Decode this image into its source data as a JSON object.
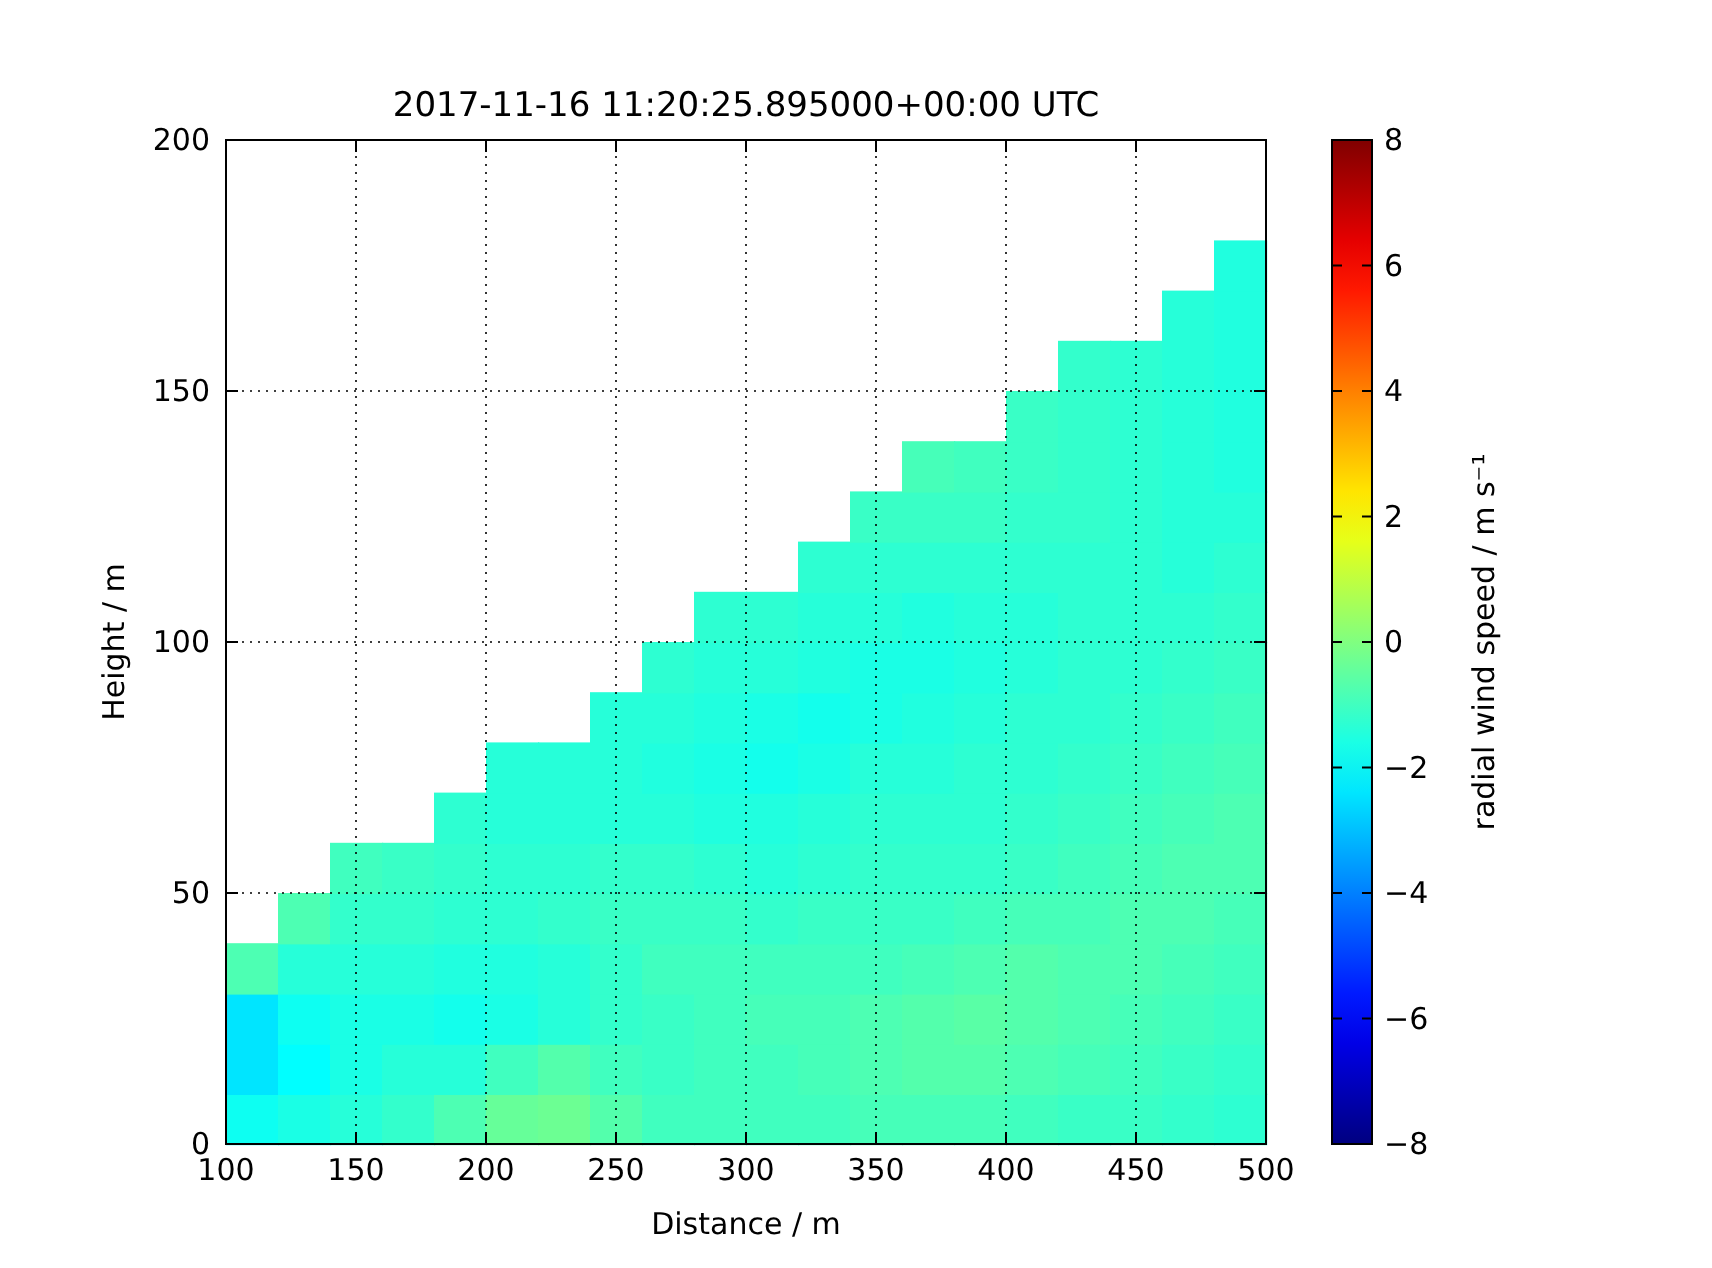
{
  "chart_data": {
    "type": "scatter",
    "title": "2017-11-16 11:20:25.895000+00:00 UTC",
    "xlabel": "Distance / m",
    "ylabel": "Height / m",
    "clabel": "radial wind speed / m s⁻¹",
    "xlim": [
      100,
      500
    ],
    "xticks": [
      100,
      150,
      200,
      250,
      300,
      350,
      400,
      450,
      500
    ],
    "ylim": [
      0,
      200
    ],
    "yticks": [
      0,
      50,
      100,
      150,
      200
    ],
    "clim": [
      -8,
      8
    ],
    "cticks": [
      -8,
      -6,
      -4,
      -2,
      0,
      2,
      4,
      6,
      8
    ],
    "grid": true,
    "marker": "square",
    "x": [
      110,
      110,
      110,
      110,
      130,
      130,
      130,
      130,
      130,
      150,
      150,
      150,
      150,
      150,
      150,
      170,
      170,
      170,
      170,
      170,
      170,
      190,
      190,
      190,
      190,
      190,
      190,
      190,
      210,
      210,
      210,
      210,
      210,
      210,
      210,
      210,
      230,
      230,
      230,
      230,
      230,
      230,
      230,
      230,
      250,
      250,
      250,
      250,
      250,
      250,
      250,
      250,
      250,
      270,
      270,
      270,
      270,
      270,
      270,
      270,
      270,
      270,
      270,
      290,
      290,
      290,
      290,
      290,
      290,
      290,
      290,
      290,
      290,
      290,
      310,
      310,
      310,
      310,
      310,
      310,
      310,
      310,
      310,
      310,
      310,
      330,
      330,
      330,
      330,
      330,
      330,
      330,
      330,
      330,
      330,
      330,
      330,
      350,
      350,
      350,
      350,
      350,
      350,
      350,
      350,
      350,
      350,
      350,
      350,
      350,
      370,
      370,
      370,
      370,
      370,
      370,
      370,
      370,
      370,
      370,
      370,
      370,
      370,
      370,
      390,
      390,
      390,
      390,
      390,
      390,
      390,
      390,
      390,
      390,
      390,
      390,
      390,
      390,
      410,
      410,
      410,
      410,
      410,
      410,
      410,
      410,
      410,
      410,
      410,
      410,
      410,
      410,
      410,
      430,
      430,
      430,
      430,
      430,
      430,
      430,
      430,
      430,
      430,
      430,
      430,
      430,
      430,
      430,
      430,
      450,
      450,
      450,
      450,
      450,
      450,
      450,
      450,
      450,
      450,
      450,
      450,
      450,
      450,
      450,
      450,
      470,
      470,
      470,
      470,
      470,
      470,
      470,
      470,
      470,
      470,
      470,
      470,
      470,
      470,
      470,
      470,
      470,
      490,
      490,
      490,
      490,
      490,
      490,
      490,
      490,
      490,
      490,
      490,
      490,
      490,
      490,
      490,
      490,
      490,
      490
    ],
    "values": [
      5,
      15,
      25,
      35,
      5,
      15,
      25,
      35,
      45,
      5,
      15,
      25,
      35,
      45,
      55,
      5,
      15,
      25,
      35,
      45,
      55,
      5,
      15,
      25,
      35,
      45,
      55,
      65,
      5,
      15,
      25,
      35,
      45,
      55,
      65,
      75,
      5,
      15,
      25,
      35,
      45,
      55,
      65,
      75,
      5,
      15,
      25,
      35,
      45,
      55,
      65,
      75,
      85,
      5,
      15,
      25,
      35,
      45,
      55,
      65,
      75,
      85,
      95,
      5,
      15,
      25,
      35,
      45,
      55,
      65,
      75,
      85,
      95,
      105,
      5,
      15,
      25,
      35,
      45,
      55,
      65,
      75,
      85,
      95,
      105,
      5,
      15,
      25,
      35,
      45,
      55,
      65,
      75,
      85,
      95,
      105,
      115,
      5,
      15,
      25,
      35,
      45,
      55,
      65,
      75,
      85,
      95,
      105,
      115,
      125,
      5,
      15,
      25,
      35,
      45,
      55,
      65,
      75,
      85,
      95,
      105,
      115,
      125,
      135,
      5,
      15,
      25,
      35,
      45,
      55,
      65,
      75,
      85,
      95,
      105,
      115,
      125,
      135,
      5,
      15,
      25,
      35,
      45,
      55,
      65,
      75,
      85,
      95,
      105,
      115,
      125,
      135,
      145,
      5,
      15,
      25,
      35,
      45,
      55,
      65,
      75,
      85,
      95,
      105,
      115,
      125,
      135,
      145,
      155,
      5,
      15,
      25,
      35,
      45,
      55,
      65,
      75,
      85,
      95,
      105,
      115,
      125,
      135,
      145,
      155,
      5,
      15,
      25,
      35,
      45,
      55,
      65,
      75,
      85,
      95,
      105,
      115,
      125,
      135,
      145,
      155,
      165,
      5,
      15,
      25,
      35,
      45,
      55,
      65,
      75,
      85,
      95,
      105,
      115,
      125,
      135,
      145,
      155,
      165,
      175
    ],
    "cvalues": [
      -1.8,
      -2.4,
      -2.4,
      -0.8,
      -1.6,
      -2.0,
      -1.8,
      -1.4,
      -0.8,
      -1.4,
      -1.6,
      -1.6,
      -1.4,
      -1.2,
      -1.0,
      -1.2,
      -1.4,
      -1.6,
      -1.4,
      -1.2,
      -1.1,
      -0.8,
      -1.4,
      -1.7,
      -1.5,
      -1.3,
      -1.2,
      -1.3,
      -0.4,
      -1.0,
      -1.6,
      -1.5,
      -1.3,
      -1.3,
      -1.4,
      -1.4,
      -0.3,
      -0.7,
      -1.4,
      -1.4,
      -1.2,
      -1.3,
      -1.4,
      -1.4,
      -0.7,
      -1.0,
      -1.2,
      -1.2,
      -1.1,
      -1.2,
      -1.4,
      -1.4,
      -1.4,
      -1.0,
      -1.1,
      -1.1,
      -1.0,
      -1.1,
      -1.2,
      -1.4,
      -1.5,
      -1.4,
      -1.3,
      -1.0,
      -1.0,
      -1.0,
      -1.0,
      -1.1,
      -1.3,
      -1.5,
      -1.6,
      -1.5,
      -1.4,
      -1.3,
      -1.0,
      -1.0,
      -0.9,
      -1.0,
      -1.2,
      -1.4,
      -1.5,
      -1.7,
      -1.6,
      -1.4,
      -1.3,
      -1.0,
      -0.9,
      -0.9,
      -1.0,
      -1.1,
      -1.3,
      -1.4,
      -1.6,
      -1.7,
      -1.5,
      -1.4,
      -1.3,
      -0.9,
      -0.8,
      -0.8,
      -1.0,
      -1.1,
      -1.2,
      -1.3,
      -1.4,
      -1.6,
      -1.6,
      -1.4,
      -1.3,
      -1.1,
      -0.9,
      -0.7,
      -0.7,
      -0.9,
      -1.1,
      -1.2,
      -1.3,
      -1.4,
      -1.5,
      -1.6,
      -1.5,
      -1.3,
      -1.1,
      -0.9,
      -0.9,
      -0.7,
      -0.6,
      -0.8,
      -1.0,
      -1.2,
      -1.3,
      -1.3,
      -1.4,
      -1.5,
      -1.4,
      -1.3,
      -1.1,
      -1.0,
      -1.0,
      -0.8,
      -0.7,
      -0.7,
      -0.9,
      -1.1,
      -1.2,
      -1.3,
      -1.3,
      -1.4,
      -1.4,
      -1.3,
      -1.2,
      -1.1,
      -1.1,
      -1.1,
      -0.9,
      -0.8,
      -0.8,
      -0.9,
      -1.0,
      -1.1,
      -1.2,
      -1.3,
      -1.3,
      -1.3,
      -1.3,
      -1.2,
      -1.2,
      -1.2,
      -1.2,
      -1.1,
      -1.0,
      -0.9,
      -0.8,
      -0.8,
      -0.9,
      -1.0,
      -1.1,
      -1.2,
      -1.3,
      -1.3,
      -1.3,
      -1.3,
      -1.3,
      -1.3,
      -1.3,
      -1.2,
      -1.1,
      -1.0,
      -0.9,
      -0.8,
      -0.8,
      -0.9,
      -1.0,
      -1.1,
      -1.2,
      -1.3,
      -1.4,
      -1.4,
      -1.4,
      -1.4,
      -1.4,
      -1.4,
      -1.3,
      -1.2,
      -1.1,
      -1.0,
      -0.9,
      -0.8,
      -0.8,
      -0.9,
      -1.0,
      -1.1,
      -1.2,
      -1.3,
      -1.4,
      -1.5,
      -1.5,
      -1.5,
      -1.5,
      -1.5
    ]
  }
}
